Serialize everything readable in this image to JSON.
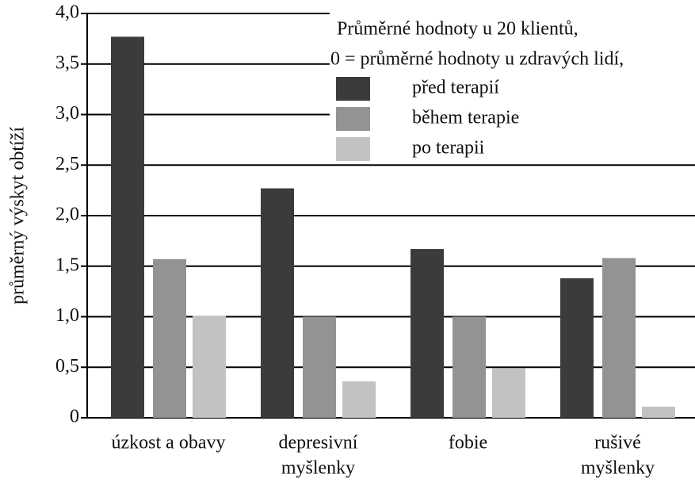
{
  "chart_data": {
    "type": "bar",
    "ylabel": "průměrný výskyt obtíží",
    "legend_title": [
      "Průměrné hodnoty u 20 klientů,",
      "0 = průměrné hodnoty u zdravých lidí,"
    ],
    "categories": [
      [
        "úzkost a obavy"
      ],
      [
        "depresivní",
        "myšlenky"
      ],
      [
        "fobie"
      ],
      [
        "rušivé",
        "myšlenky"
      ]
    ],
    "series": [
      {
        "name": "před terapií",
        "color": "#3b3b3b",
        "values": [
          3.77,
          2.27,
          1.67,
          1.38
        ]
      },
      {
        "name": "během terapie",
        "color": "#939393",
        "values": [
          1.57,
          1.0,
          1.0,
          1.58
        ]
      },
      {
        "name": "po terapii",
        "color": "#c2c2c2",
        "values": [
          1.01,
          0.36,
          0.49,
          0.11
        ]
      }
    ],
    "ylim": [
      0,
      4
    ],
    "yticks": [
      0,
      {
        "value": 0.5,
        "label": "0,5"
      },
      {
        "value": 1,
        "label": "1,0"
      },
      {
        "value": 1.5,
        "label": "1,5"
      },
      {
        "value": 2,
        "label": "2,0"
      },
      {
        "value": 2.5,
        "label": "2,5"
      },
      {
        "value": 3,
        "label": "3,0"
      },
      {
        "value": 3.5,
        "label": "3,5"
      },
      {
        "value": 4,
        "label": "4,0"
      }
    ],
    "grid": true
  }
}
